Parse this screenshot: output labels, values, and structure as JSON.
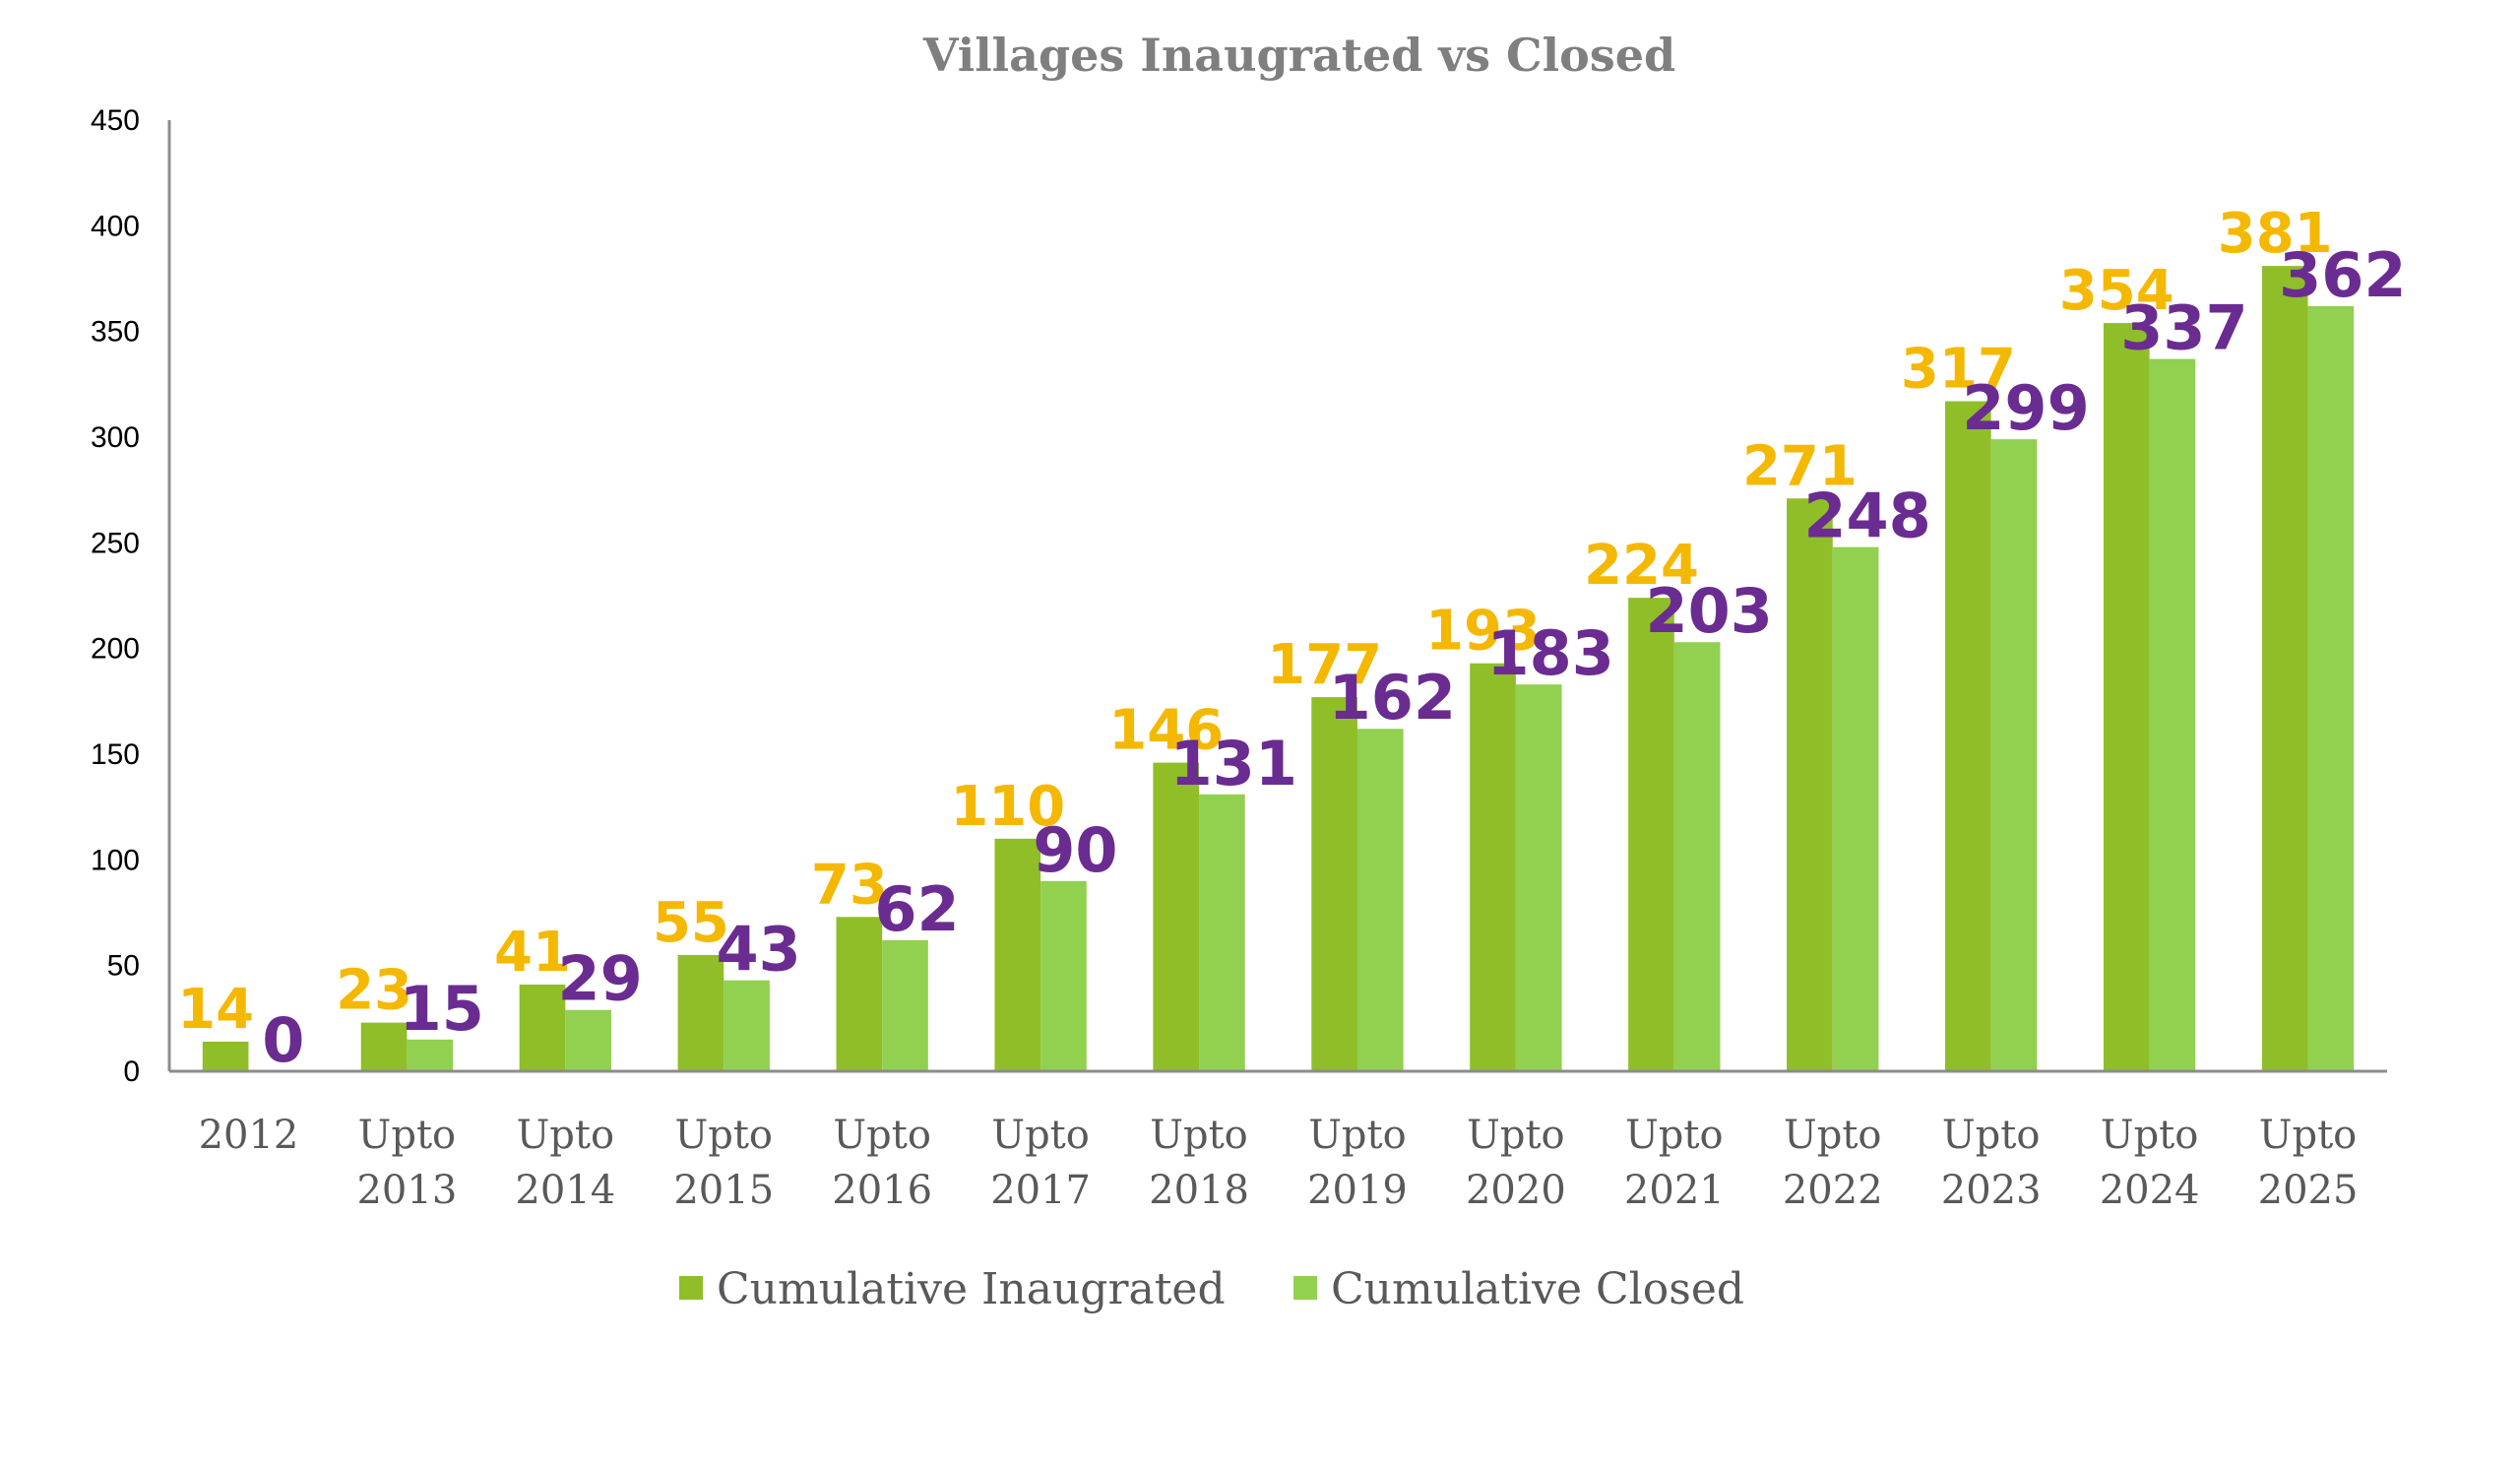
{
  "chart_data": {
    "type": "bar",
    "title": "Villages Inaugrated vs Closed",
    "categories": [
      [
        "2012"
      ],
      [
        "Upto",
        "2013"
      ],
      [
        "Upto",
        "2014"
      ],
      [
        "Upto",
        "2015"
      ],
      [
        "Upto",
        "2016"
      ],
      [
        "Upto",
        "2017"
      ],
      [
        "Upto",
        "2018"
      ],
      [
        "Upto",
        "2019"
      ],
      [
        "Upto",
        "2020"
      ],
      [
        "Upto",
        "2021"
      ],
      [
        "Upto",
        "2022"
      ],
      [
        "Upto",
        "2023"
      ],
      [
        "Upto",
        "2024"
      ],
      [
        "Upto",
        "2025"
      ]
    ],
    "series": [
      {
        "name": "Cumulative Inaugrated",
        "color": "#8fbe28",
        "label_color": "#f5b800",
        "values": [
          14,
          23,
          41,
          55,
          73,
          110,
          146,
          177,
          193,
          224,
          271,
          317,
          354,
          381
        ]
      },
      {
        "name": "Cumulative Closed",
        "color": "#92d050",
        "label_color": "#6a2c91",
        "values": [
          0,
          15,
          29,
          43,
          62,
          90,
          131,
          162,
          183,
          203,
          248,
          299,
          337,
          362
        ]
      }
    ],
    "yticks": [
      0,
      50,
      100,
      150,
      200,
      250,
      300,
      350,
      400,
      450
    ],
    "ylim": [
      0,
      450
    ],
    "xlabel": "",
    "ylabel": "",
    "grid": false,
    "legend": "bottom"
  }
}
